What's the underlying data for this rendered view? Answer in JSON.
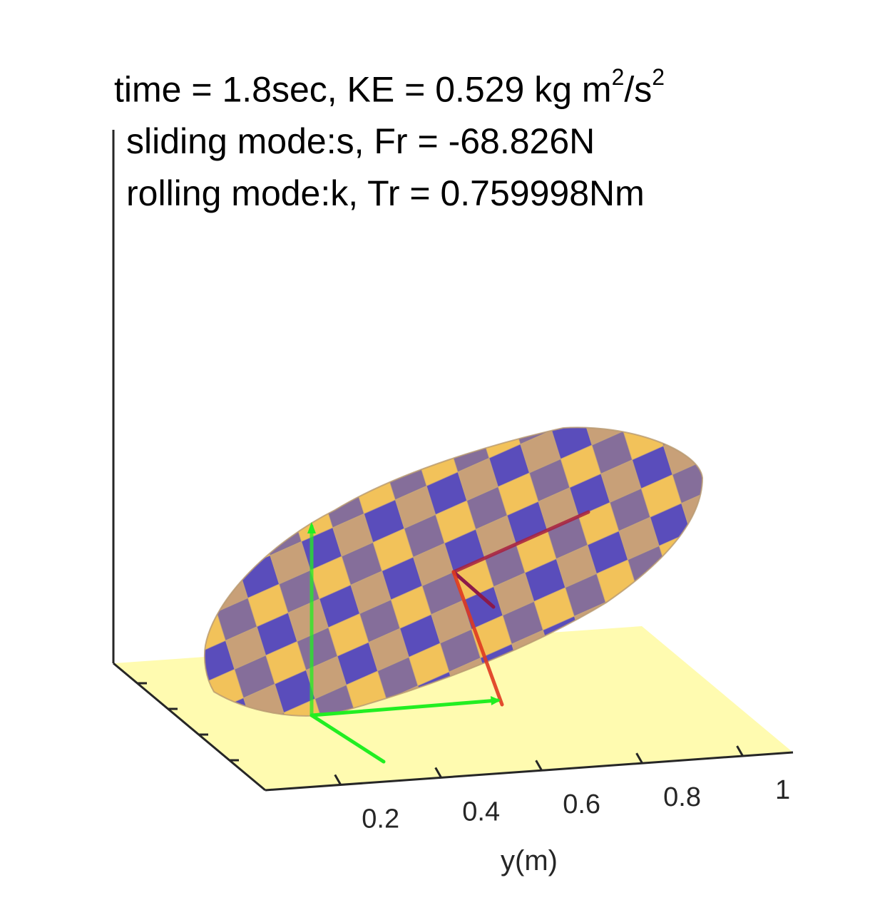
{
  "chart_data": {
    "type": "3d-surface",
    "title_lines": {
      "line1_prefix": "time = 1.8sec, KE = 0.529 kg m",
      "line1_sup1": "2",
      "line1_mid": "/s",
      "line1_sup2": "2",
      "line2": "sliding mode:s, Fr = -68.826N",
      "line3": "rolling mode:k, Tr = 0.759998Nm"
    },
    "xlabel": "",
    "ylabel": "y(m)",
    "zlabel": "",
    "y_ticks": [
      0.2,
      0.4,
      0.6,
      0.8,
      1
    ],
    "y_tick_labels": [
      "0.2",
      "0.4",
      "0.6",
      "0.8",
      "1"
    ],
    "colors": {
      "ground": "#fffbb0",
      "surface_light": "#f2c25a",
      "surface_dark": "#5a4dbb",
      "surface_mid_light": "#c8a078",
      "surface_mid_dark": "#856e9a",
      "axis_green": "#22ee22",
      "axis_red": "#ee1111",
      "axis_dark_red": "#8b1a4a",
      "axis_line": "#262626"
    }
  }
}
